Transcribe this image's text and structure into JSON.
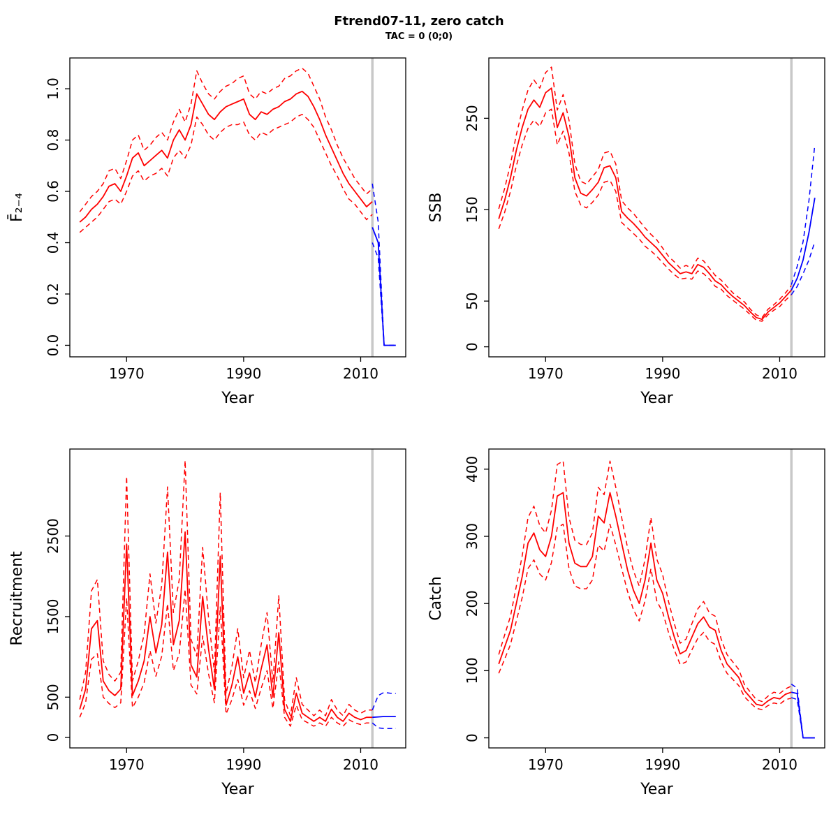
{
  "page": {
    "title": "Ftrend07-11, zero catch",
    "subtitle": "TAC = 0 (0;0)"
  },
  "colors": {
    "history": "#ff0000",
    "forecast": "#0000ff",
    "refline": "#c8c8c8",
    "axis": "#000000"
  },
  "chart_data": {
    "type": "line",
    "layout": "2x2-grid",
    "line_styles": {
      "median": "solid",
      "bounds": "dashed"
    },
    "refline_year": 2012,
    "years_history": [
      1962,
      1963,
      1964,
      1965,
      1966,
      1967,
      1968,
      1969,
      1970,
      1971,
      1972,
      1973,
      1974,
      1975,
      1976,
      1977,
      1978,
      1979,
      1980,
      1981,
      1982,
      1983,
      1984,
      1985,
      1986,
      1987,
      1988,
      1989,
      1990,
      1991,
      1992,
      1993,
      1994,
      1995,
      1996,
      1997,
      1998,
      1999,
      2000,
      2001,
      2002,
      2003,
      2004,
      2005,
      2006,
      2007,
      2008,
      2009,
      2010,
      2011,
      2012
    ],
    "years_forecast": [
      2012,
      2013,
      2014,
      2015,
      2016
    ],
    "panels": [
      {
        "id": "fbar",
        "xlabel": "Year",
        "ylabel": "F̄₂₋₄",
        "xlim": [
          1960.3,
          2017.7
        ],
        "ylim": [
          -0.045,
          1.12
        ],
        "xticks": [
          1970,
          1990,
          2010
        ],
        "xtick_labels": [
          "1970",
          "1990",
          "2010"
        ],
        "yticks": [
          0.0,
          0.2,
          0.4,
          0.6,
          0.8,
          1.0
        ],
        "ytick_labels": [
          "0.0",
          "0.2",
          "0.4",
          "0.6",
          "0.8",
          "1.0"
        ],
        "history": {
          "median": [
            0.48,
            0.5,
            0.53,
            0.55,
            0.58,
            0.62,
            0.63,
            0.6,
            0.66,
            0.73,
            0.75,
            0.7,
            0.72,
            0.74,
            0.76,
            0.73,
            0.8,
            0.84,
            0.8,
            0.86,
            0.98,
            0.94,
            0.9,
            0.88,
            0.91,
            0.93,
            0.94,
            0.95,
            0.96,
            0.9,
            0.88,
            0.91,
            0.9,
            0.92,
            0.93,
            0.95,
            0.96,
            0.98,
            0.99,
            0.97,
            0.93,
            0.88,
            0.82,
            0.77,
            0.72,
            0.67,
            0.63,
            0.6,
            0.57,
            0.54,
            0.56
          ],
          "lo": [
            0.44,
            0.46,
            0.48,
            0.5,
            0.53,
            0.56,
            0.57,
            0.55,
            0.6,
            0.66,
            0.68,
            0.64,
            0.66,
            0.67,
            0.69,
            0.66,
            0.73,
            0.76,
            0.73,
            0.78,
            0.89,
            0.86,
            0.82,
            0.8,
            0.83,
            0.85,
            0.86,
            0.86,
            0.87,
            0.82,
            0.8,
            0.83,
            0.82,
            0.84,
            0.85,
            0.86,
            0.87,
            0.89,
            0.9,
            0.88,
            0.85,
            0.8,
            0.75,
            0.7,
            0.66,
            0.61,
            0.57,
            0.55,
            0.52,
            0.49,
            0.51
          ],
          "hi": [
            0.52,
            0.55,
            0.58,
            0.6,
            0.63,
            0.68,
            0.69,
            0.65,
            0.72,
            0.8,
            0.82,
            0.76,
            0.78,
            0.81,
            0.83,
            0.8,
            0.87,
            0.92,
            0.87,
            0.94,
            1.07,
            1.02,
            0.98,
            0.96,
            0.99,
            1.01,
            1.02,
            1.04,
            1.05,
            0.98,
            0.96,
            0.99,
            0.98,
            1.0,
            1.01,
            1.04,
            1.05,
            1.07,
            1.08,
            1.06,
            1.01,
            0.96,
            0.89,
            0.84,
            0.78,
            0.73,
            0.69,
            0.65,
            0.62,
            0.59,
            0.61
          ]
        },
        "forecast": {
          "median": [
            0.46,
            0.4,
            0.0,
            0.0,
            0.0
          ],
          "lo": [
            0.4,
            0.34,
            0.0,
            0.0,
            0.0
          ],
          "hi": [
            0.63,
            0.48,
            0.0,
            0.0,
            0.0
          ]
        }
      },
      {
        "id": "ssb",
        "xlabel": "Year",
        "ylabel": "SSB",
        "xlim": [
          1960.3,
          2017.7
        ],
        "ylim": [
          -11,
          316
        ],
        "xticks": [
          1970,
          1990,
          2010
        ],
        "xtick_labels": [
          "1970",
          "1990",
          "2010"
        ],
        "yticks": [
          0,
          50,
          150,
          250
        ],
        "ytick_labels": [
          "0",
          "50",
          "150",
          "250"
        ],
        "history": {
          "median": [
            140,
            160,
            185,
            215,
            240,
            260,
            270,
            262,
            278,
            283,
            240,
            256,
            230,
            185,
            168,
            165,
            172,
            180,
            196,
            198,
            185,
            148,
            141,
            135,
            128,
            120,
            114,
            108,
            100,
            92,
            86,
            80,
            82,
            80,
            90,
            87,
            80,
            72,
            68,
            61,
            55,
            50,
            45,
            38,
            32,
            30,
            38,
            43,
            48,
            55,
            62
          ],
          "lo": [
            129,
            147,
            170,
            198,
            221,
            239,
            248,
            241,
            256,
            260,
            221,
            236,
            212,
            170,
            155,
            152,
            158,
            166,
            180,
            182,
            170,
            136,
            130,
            124,
            118,
            110,
            105,
            99,
            92,
            85,
            79,
            74,
            75,
            74,
            83,
            80,
            74,
            66,
            63,
            56,
            51,
            46,
            41,
            35,
            29,
            28,
            35,
            40,
            44,
            51,
            57
          ],
          "hi": [
            151,
            173,
            200,
            232,
            259,
            281,
            292,
            283,
            300,
            306,
            259,
            276,
            248,
            200,
            181,
            178,
            186,
            194,
            212,
            214,
            200,
            160,
            152,
            146,
            138,
            130,
            123,
            117,
            108,
            99,
            93,
            86,
            89,
            86,
            97,
            94,
            86,
            78,
            73,
            66,
            59,
            54,
            49,
            41,
            35,
            32,
            41,
            46,
            52,
            59,
            67
          ]
        },
        "forecast": {
          "median": [
            62,
            75,
            95,
            125,
            163
          ],
          "lo": [
            57,
            66,
            80,
            95,
            115
          ],
          "hi": [
            68,
            88,
            115,
            160,
            221
          ]
        }
      },
      {
        "id": "recruitment",
        "xlabel": "Year",
        "ylabel": "Recruitment",
        "xlim": [
          1960.3,
          2017.7
        ],
        "ylim": [
          -130,
          3580
        ],
        "xticks": [
          1970,
          1990,
          2010
        ],
        "xtick_labels": [
          "1970",
          "1990",
          "2010"
        ],
        "yticks": [
          0,
          500,
          1500,
          2500
        ],
        "ytick_labels": [
          "0",
          "500",
          "1500",
          "2500"
        ],
        "history": {
          "median": [
            350,
            600,
            1350,
            1450,
            700,
            580,
            520,
            600,
            2400,
            520,
            700,
            950,
            1500,
            1050,
            1400,
            2300,
            1150,
            1450,
            2550,
            900,
            750,
            1750,
            1100,
            600,
            2250,
            400,
            650,
            1000,
            550,
            800,
            500,
            850,
            1150,
            500,
            1300,
            350,
            200,
            550,
            300,
            250,
            200,
            250,
            200,
            350,
            250,
            200,
            300,
            250,
            220,
            250,
            250
          ],
          "lo": [
            250,
            430,
            970,
            1040,
            500,
            420,
            370,
            430,
            1730,
            370,
            500,
            680,
            1080,
            760,
            1010,
            1660,
            830,
            1040,
            1840,
            650,
            540,
            1260,
            790,
            430,
            1620,
            290,
            470,
            720,
            400,
            580,
            360,
            610,
            830,
            360,
            940,
            250,
            140,
            400,
            220,
            180,
            140,
            180,
            140,
            250,
            180,
            140,
            220,
            180,
            160,
            180,
            180
          ],
          "hi": [
            470,
            810,
            1820,
            1960,
            950,
            780,
            700,
            810,
            3240,
            700,
            950,
            1280,
            2030,
            1420,
            1890,
            3110,
            1550,
            1960,
            3440,
            1220,
            1010,
            2360,
            1490,
            810,
            3040,
            540,
            880,
            1350,
            740,
            1080,
            680,
            1150,
            1550,
            680,
            1760,
            470,
            270,
            740,
            410,
            340,
            270,
            340,
            270,
            470,
            340,
            270,
            410,
            340,
            300,
            340,
            340
          ]
        },
        "forecast": {
          "median": [
            250,
            255,
            260,
            260,
            260
          ],
          "lo": [
            180,
            120,
            110,
            110,
            110
          ],
          "hi": [
            340,
            520,
            560,
            550,
            545
          ]
        }
      },
      {
        "id": "catch",
        "xlabel": "Year",
        "ylabel": "Catch",
        "xlim": [
          1960.3,
          2017.7
        ],
        "ylim": [
          -15,
          430
        ],
        "xticks": [
          1970,
          1990,
          2010
        ],
        "xtick_labels": [
          "1970",
          "1990",
          "2010"
        ],
        "yticks": [
          0,
          100,
          200,
          300,
          400
        ],
        "ytick_labels": [
          "0",
          "100",
          "200",
          "300",
          "400"
        ],
        "history": {
          "median": [
            110,
            135,
            160,
            200,
            240,
            290,
            305,
            280,
            270,
            300,
            360,
            365,
            290,
            260,
            255,
            255,
            270,
            330,
            320,
            365,
            330,
            290,
            250,
            220,
            200,
            235,
            290,
            235,
            215,
            180,
            150,
            125,
            130,
            150,
            170,
            180,
            165,
            160,
            130,
            110,
            100,
            90,
            70,
            60,
            50,
            48,
            55,
            60,
            58,
            65,
            68
          ],
          "lo": [
            96,
            117,
            139,
            174,
            209,
            252,
            265,
            244,
            235,
            261,
            313,
            318,
            252,
            226,
            222,
            222,
            235,
            287,
            278,
            318,
            287,
            252,
            218,
            191,
            174,
            204,
            252,
            204,
            187,
            157,
            131,
            109,
            113,
            131,
            148,
            157,
            144,
            139,
            113,
            96,
            87,
            78,
            61,
            52,
            44,
            42,
            48,
            52,
            50,
            57,
            59
          ],
          "hi": [
            124,
            153,
            181,
            226,
            271,
            328,
            345,
            316,
            305,
            339,
            407,
            412,
            328,
            294,
            288,
            288,
            305,
            373,
            362,
            412,
            373,
            328,
            283,
            249,
            226,
            266,
            328,
            266,
            243,
            203,
            170,
            141,
            147,
            170,
            192,
            203,
            186,
            181,
            147,
            124,
            113,
            102,
            79,
            68,
            57,
            54,
            62,
            68,
            66,
            73,
            77
          ]
        },
        "forecast": {
          "median": [
            68,
            66,
            0,
            0,
            0
          ],
          "lo": [
            60,
            57,
            0,
            0,
            0
          ],
          "hi": [
            80,
            74,
            0,
            0,
            0
          ]
        }
      }
    ]
  }
}
